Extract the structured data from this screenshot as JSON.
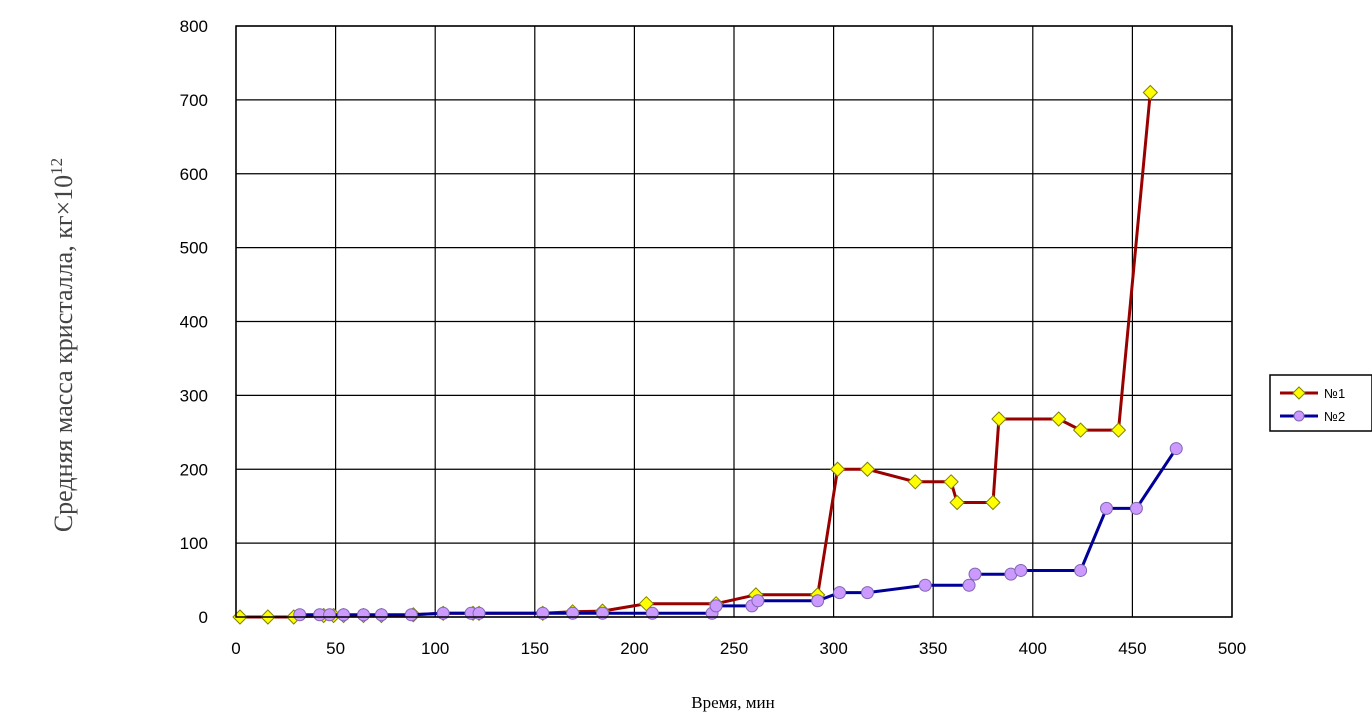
{
  "chart_data": {
    "type": "line",
    "title": "",
    "xlabel": "Время, мин",
    "ylabel": "Средняя масса кристалла, кг×10",
    "ylabel_sup": "12",
    "xlim": [
      0,
      500
    ],
    "ylim": [
      0,
      800
    ],
    "xticks": [
      "0",
      "50",
      "100",
      "150",
      "200",
      "250",
      "300",
      "350",
      "400",
      "450",
      "500"
    ],
    "yticks": [
      "0",
      "100",
      "200",
      "300",
      "400",
      "500",
      "600",
      "700",
      "800"
    ],
    "grid": true,
    "legend_position": "right",
    "series": [
      {
        "name": "№1",
        "line_color": "#990000",
        "marker_color": "#ffff00",
        "marker": "diamond",
        "x": [
          2,
          16,
          29,
          44,
          49,
          54,
          64,
          73,
          89,
          104,
          119,
          122,
          154,
          169,
          184,
          206,
          241,
          261,
          292,
          302,
          317,
          341,
          359,
          362,
          380,
          383,
          413,
          424,
          443,
          459
        ],
        "y": [
          0,
          0,
          0,
          2,
          2,
          2,
          2,
          2,
          3,
          5,
          5,
          5,
          5,
          7,
          8,
          18,
          18,
          30,
          30,
          200,
          200,
          183,
          183,
          155,
          155,
          268,
          268,
          253,
          253,
          710
        ]
      },
      {
        "name": "№2",
        "line_color": "#000099",
        "marker_color": "#cc99ff",
        "marker": "circle",
        "x": [
          32,
          42,
          47,
          54,
          64,
          73,
          88,
          104,
          118,
          122,
          154,
          169,
          184,
          209,
          239,
          241,
          259,
          262,
          292,
          303,
          317,
          346,
          368,
          371,
          389,
          394,
          424,
          437,
          452,
          472
        ],
        "y": [
          3,
          3,
          3,
          3,
          3,
          3,
          3,
          5,
          5,
          5,
          5,
          5,
          5,
          5,
          5,
          15,
          15,
          22,
          22,
          33,
          33,
          43,
          43,
          58,
          58,
          63,
          63,
          147,
          147,
          228
        ]
      }
    ]
  }
}
